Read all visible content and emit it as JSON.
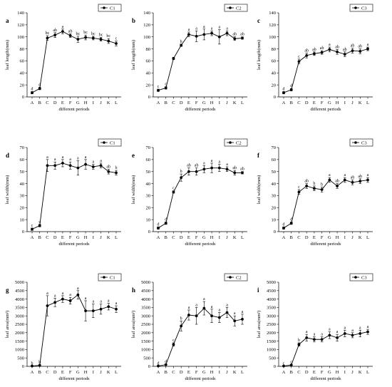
{
  "figure": {
    "categories": [
      "A",
      "B",
      "C",
      "D",
      "E",
      "F",
      "G",
      "H",
      "I",
      "J",
      "K",
      "L"
    ],
    "xlabel": "different periods",
    "colors": {
      "line": "#000000",
      "background": "#ffffff"
    },
    "icons": {
      "marker": "filled-circle"
    }
  },
  "chart_data": [
    {
      "type": "line",
      "panel_label": "a",
      "legend": "C1",
      "ylabel": "leaf length(mm)",
      "ylim": [
        0,
        140
      ],
      "yticks": [
        0,
        20,
        40,
        60,
        80,
        100,
        120,
        140
      ],
      "xticks": [
        "A",
        "B",
        "C",
        "D",
        "E",
        "F",
        "G",
        "H",
        "I",
        "J",
        "K",
        "L"
      ],
      "xlabel": "different periods",
      "legend_position": "top-right",
      "series": [
        {
          "name": "C1",
          "values": [
            7,
            14,
            98,
            103,
            109,
            102,
            96,
            99,
            98,
            96,
            93,
            89
          ],
          "errors": [
            2,
            2,
            4,
            4,
            4,
            3,
            5,
            4,
            3,
            3,
            4,
            4
          ],
          "significance": [
            "d",
            "d",
            "bc",
            "ab",
            "a",
            "ab",
            "bc",
            "bc",
            "bc",
            "bc",
            "bc",
            "c"
          ]
        }
      ]
    },
    {
      "type": "line",
      "panel_label": "b",
      "legend": "C2",
      "ylabel": "leaf length(mm)",
      "ylim": [
        0,
        140
      ],
      "yticks": [
        0,
        20,
        40,
        60,
        80,
        100,
        120,
        140
      ],
      "xticks": [
        "A",
        "B",
        "C",
        "D",
        "E",
        "F",
        "G",
        "H",
        "I",
        "J",
        "K",
        "L"
      ],
      "xlabel": "different periods",
      "legend_position": "top-right",
      "series": [
        {
          "name": "C2",
          "values": [
            11,
            15,
            64,
            86,
            104,
            101,
            104,
            106,
            100,
            106,
            97,
            98
          ],
          "errors": [
            2,
            2,
            2,
            2,
            4,
            9,
            9,
            4,
            12,
            4,
            3,
            2
          ],
          "significance": [
            "c",
            "c",
            "",
            "b",
            "a",
            "a",
            "a",
            "a",
            "a",
            "a",
            "ab",
            "ab"
          ]
        }
      ]
    },
    {
      "type": "line",
      "panel_label": "c",
      "legend": "C3",
      "ylabel": "leaf length(mm)",
      "ylim": [
        0,
        140
      ],
      "yticks": [
        0,
        20,
        40,
        60,
        80,
        100,
        120,
        140
      ],
      "xticks": [
        "A",
        "B",
        "C",
        "D",
        "E",
        "F",
        "G",
        "H",
        "I",
        "J",
        "K",
        "L"
      ],
      "xlabel": "different periods",
      "legend_position": "top-right",
      "series": [
        {
          "name": "C3",
          "values": [
            7,
            12,
            59,
            69,
            72,
            74,
            79,
            75,
            71,
            77,
            76,
            80
          ],
          "errors": [
            2,
            2,
            4,
            4,
            3,
            3,
            4,
            4,
            4,
            4,
            4,
            3
          ],
          "significance": [
            "d",
            "d",
            "c",
            "ab",
            "ab",
            "ab",
            "a",
            "ab",
            "ab",
            "ab",
            "ab",
            "a"
          ]
        }
      ]
    },
    {
      "type": "line",
      "panel_label": "d",
      "legend": "C1",
      "ylabel": "leaf width(mm)",
      "ylim": [
        0,
        70
      ],
      "yticks": [
        0,
        10,
        20,
        30,
        40,
        50,
        60,
        70
      ],
      "xticks": [
        "A",
        "B",
        "C",
        "D",
        "E",
        "F",
        "G",
        "H",
        "I",
        "J",
        "K",
        "L"
      ],
      "xlabel": "different periods",
      "legend_position": "top-right",
      "series": [
        {
          "name": "C1",
          "values": [
            2,
            5,
            55,
            55,
            57,
            55,
            53,
            56,
            54,
            55,
            50,
            49
          ],
          "errors": [
            1,
            1,
            5,
            3,
            3,
            3,
            6,
            4,
            2,
            2,
            2,
            2
          ],
          "significance": [
            "c",
            "c",
            "a",
            "a",
            "a",
            "a",
            "a",
            "a",
            "a",
            "a",
            "ab",
            "b"
          ]
        }
      ]
    },
    {
      "type": "line",
      "panel_label": "e",
      "legend": "C2",
      "ylabel": "leaf width(mm)",
      "ylim": [
        0,
        70
      ],
      "yticks": [
        0,
        10,
        20,
        30,
        40,
        50,
        60,
        70
      ],
      "xticks": [
        "A",
        "B",
        "C",
        "D",
        "E",
        "F",
        "G",
        "H",
        "I",
        "J",
        "K",
        "L"
      ],
      "xlabel": "different periods",
      "legend_position": "top-right",
      "series": [
        {
          "name": "C2",
          "values": [
            3,
            7,
            33,
            45,
            50,
            50,
            52,
            53,
            53,
            52,
            49,
            49
          ],
          "errors": [
            1,
            1,
            1,
            3,
            3,
            3,
            3,
            4,
            3,
            2,
            2,
            1
          ],
          "significance": [
            "d",
            "d",
            "c",
            "b",
            "ab",
            "ab",
            "a",
            "a",
            "a",
            "a",
            "ab",
            "ab"
          ]
        }
      ]
    },
    {
      "type": "line",
      "panel_label": "f",
      "legend": "C3",
      "ylabel": "leaf width(mm)",
      "ylim": [
        0,
        70
      ],
      "yticks": [
        0,
        10,
        20,
        30,
        40,
        50,
        60,
        70
      ],
      "xticks": [
        "A",
        "B",
        "C",
        "D",
        "E",
        "F",
        "G",
        "H",
        "I",
        "J",
        "K",
        "L"
      ],
      "xlabel": "different periods",
      "legend_position": "top-right",
      "series": [
        {
          "name": "C3",
          "values": [
            3,
            7,
            33,
            38,
            36,
            35,
            43,
            38,
            43,
            41,
            42,
            43
          ],
          "errors": [
            1,
            1,
            2,
            2,
            2,
            2,
            2,
            2,
            2,
            2,
            2,
            2
          ],
          "significance": [
            "d",
            "d",
            "c",
            "ab",
            "b",
            "b",
            "a",
            "ab",
            "a",
            "ab",
            "ab",
            "a"
          ]
        }
      ]
    },
    {
      "type": "line",
      "panel_label": "g",
      "legend": "C1",
      "ylabel": "leaf area(mm²)",
      "ylim": [
        0,
        5000
      ],
      "yticks": [
        0,
        500,
        1000,
        1500,
        2000,
        2500,
        3000,
        3500,
        4000,
        4500,
        5000
      ],
      "xticks": [
        "A",
        "B",
        "C",
        "D",
        "E",
        "F",
        "G",
        "H",
        "I",
        "J",
        "K",
        "L"
      ],
      "xlabel": "different periods",
      "legend_position": "top-right",
      "series": [
        {
          "name": "C1",
          "values": [
            20,
            60,
            3600,
            3800,
            4000,
            3900,
            4250,
            3300,
            3300,
            3400,
            3550,
            3400
          ],
          "errors": [
            10,
            20,
            600,
            250,
            200,
            200,
            250,
            600,
            400,
            300,
            200,
            200
          ],
          "significance": [
            "b",
            "b",
            "a",
            "a",
            "a",
            "a",
            "a",
            "a",
            "a",
            "a",
            "a",
            "a"
          ]
        }
      ]
    },
    {
      "type": "line",
      "panel_label": "h",
      "legend": "C2",
      "ylabel": "leaf area(mm²)",
      "ylim": [
        0,
        5000
      ],
      "yticks": [
        0,
        500,
        1000,
        1500,
        2000,
        2500,
        3000,
        3500,
        4000,
        4500,
        5000
      ],
      "xticks": [
        "A",
        "B",
        "C",
        "D",
        "E",
        "F",
        "G",
        "H",
        "I",
        "J",
        "K",
        "L"
      ],
      "xlabel": "different periods",
      "legend_position": "top-right",
      "series": [
        {
          "name": "C2",
          "values": [
            20,
            100,
            1300,
            2400,
            3050,
            3000,
            3450,
            3000,
            2900,
            3200,
            2700,
            2800
          ],
          "errors": [
            10,
            30,
            100,
            300,
            300,
            500,
            400,
            400,
            300,
            300,
            300,
            300
          ],
          "significance": [
            "d",
            "d",
            "c",
            "b",
            "a",
            "a",
            "a",
            "a",
            "a",
            "a",
            "a",
            "a"
          ]
        }
      ]
    },
    {
      "type": "line",
      "panel_label": "i",
      "legend": "C3",
      "ylabel": "leaf area(mm²)",
      "ylim": [
        0,
        5000
      ],
      "yticks": [
        0,
        500,
        1000,
        1500,
        2000,
        2500,
        3000,
        3500,
        4000,
        4500,
        5000
      ],
      "xticks": [
        "A",
        "B",
        "C",
        "D",
        "E",
        "F",
        "G",
        "H",
        "I",
        "J",
        "K",
        "L"
      ],
      "xlabel": "different periods",
      "legend_position": "top-right",
      "series": [
        {
          "name": "C3",
          "values": [
            20,
            80,
            1300,
            1700,
            1600,
            1600,
            1850,
            1700,
            1950,
            1850,
            1950,
            2050
          ],
          "errors": [
            10,
            30,
            100,
            200,
            150,
            150,
            200,
            200,
            200,
            150,
            200,
            150
          ],
          "significance": [
            "c",
            "c",
            "b",
            "a",
            "a",
            "a",
            "a",
            "a",
            "a",
            "a",
            "a",
            "a"
          ]
        }
      ]
    }
  ]
}
